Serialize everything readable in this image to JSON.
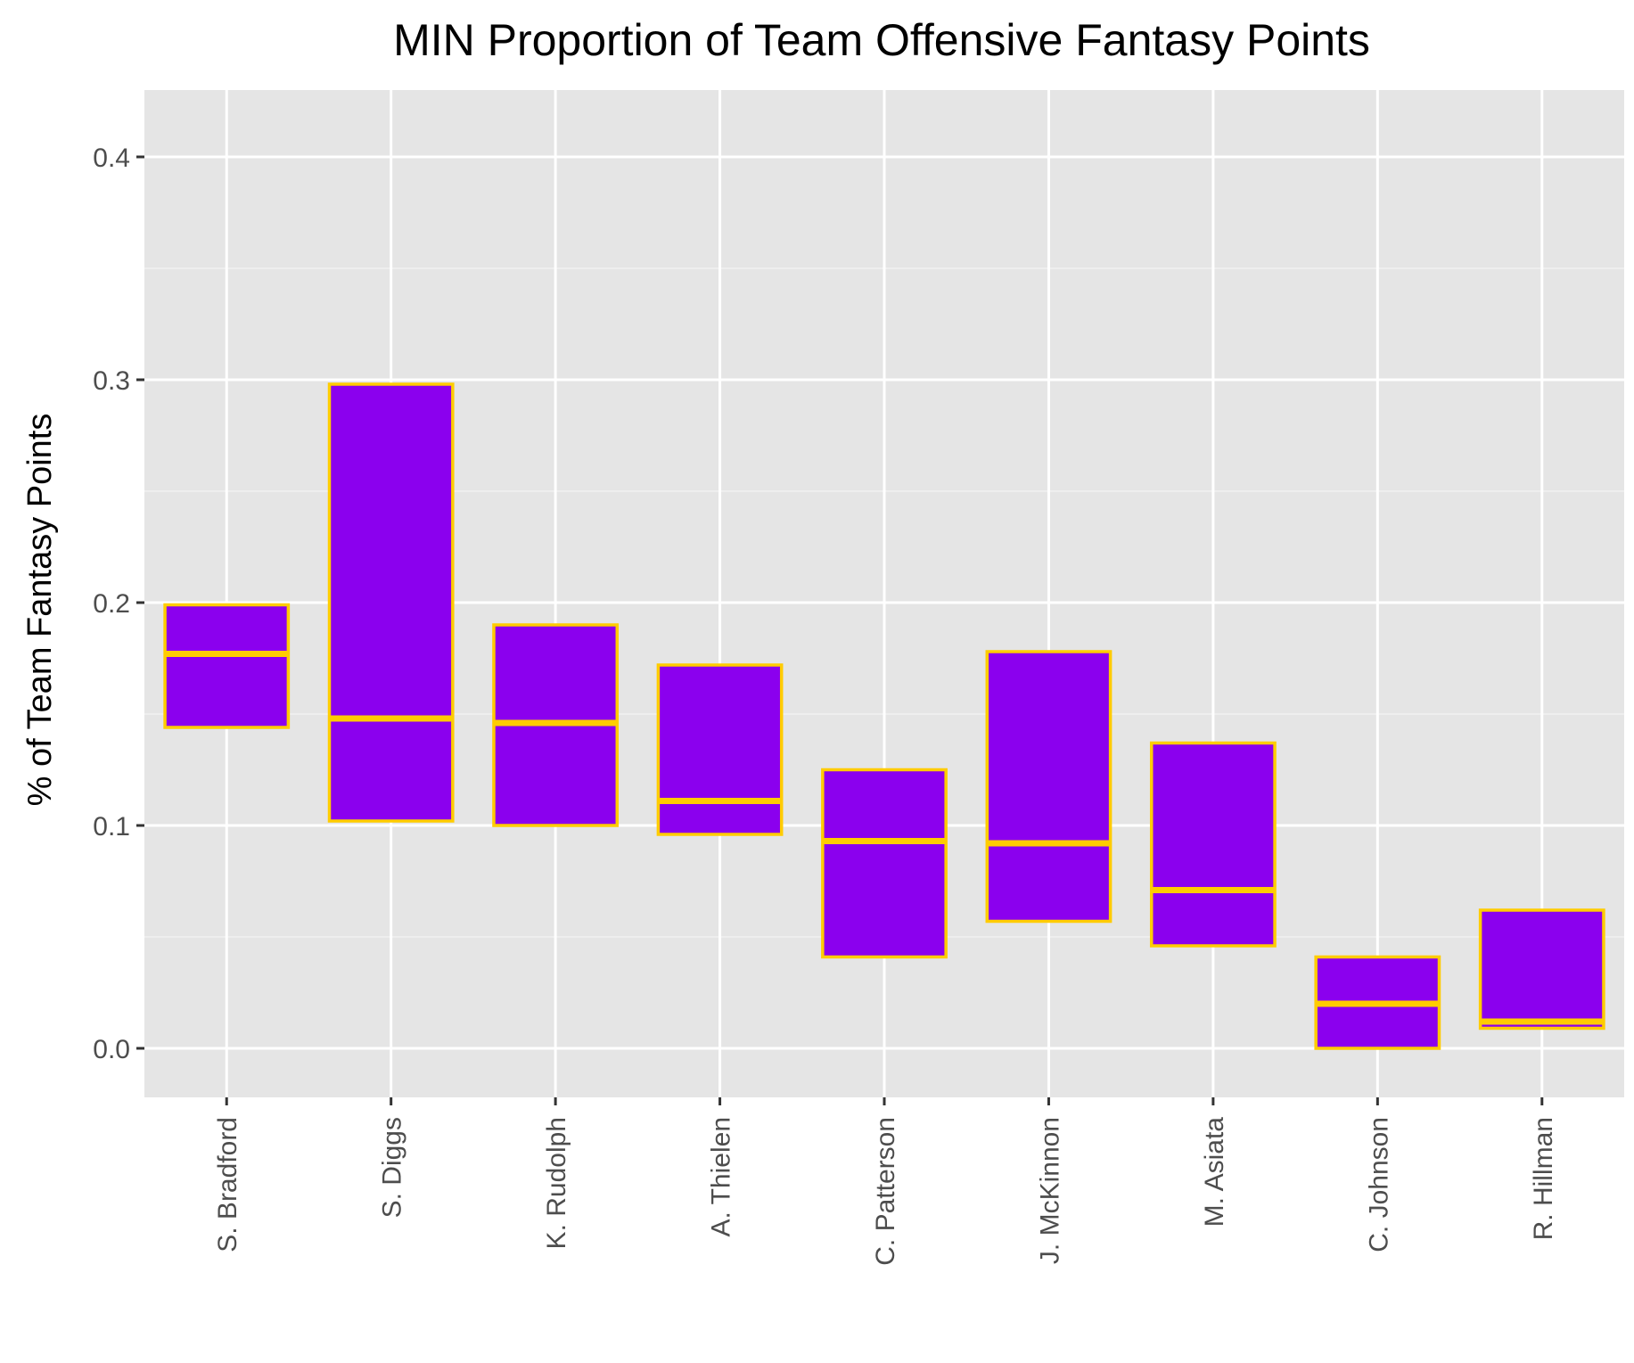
{
  "chart_data": {
    "type": "box",
    "title": "MIN Proportion of Team Offensive Fantasy Points",
    "xlabel": "",
    "ylabel": "% of Team Fantasy Points",
    "ylim": [
      -0.022,
      0.43
    ],
    "yticks": [
      0.0,
      0.1,
      0.2,
      0.3,
      0.4
    ],
    "ytick_labels": [
      "0.0",
      "0.1",
      "0.2",
      "0.3",
      "0.4"
    ],
    "grid": true,
    "legend": "none",
    "categories": [
      "S. Bradford",
      "S. Diggs",
      "K. Rudolph",
      "A. Thielen",
      "C. Patterson",
      "J. McKinnon",
      "M. Asiata",
      "C. Johnson",
      "R. Hillman"
    ],
    "boxes": [
      {
        "category": "S. Bradford",
        "lower": 0.144,
        "median": 0.177,
        "upper": 0.199
      },
      {
        "category": "S. Diggs",
        "lower": 0.102,
        "median": 0.148,
        "upper": 0.298
      },
      {
        "category": "K. Rudolph",
        "lower": 0.1,
        "median": 0.146,
        "upper": 0.19
      },
      {
        "category": "A. Thielen",
        "lower": 0.096,
        "median": 0.111,
        "upper": 0.172
      },
      {
        "category": "C. Patterson",
        "lower": 0.041,
        "median": 0.093,
        "upper": 0.125
      },
      {
        "category": "J. McKinnon",
        "lower": 0.057,
        "median": 0.092,
        "upper": 0.178
      },
      {
        "category": "M. Asiata",
        "lower": 0.046,
        "median": 0.071,
        "upper": 0.137
      },
      {
        "category": "C. Johnson",
        "lower": 0.0,
        "median": 0.02,
        "upper": 0.041
      },
      {
        "category": "R. Hillman",
        "lower": 0.009,
        "median": 0.012,
        "upper": 0.062
      }
    ],
    "colors": {
      "box_fill": "#8B00EE",
      "box_stroke": "#FFCC00",
      "panel_background": "#E5E5E5",
      "grid_major": "#FFFFFF",
      "grid_minor": "#F2F2F2",
      "tick_label": "#4D4D4D",
      "tick_mark": "#333333"
    }
  }
}
